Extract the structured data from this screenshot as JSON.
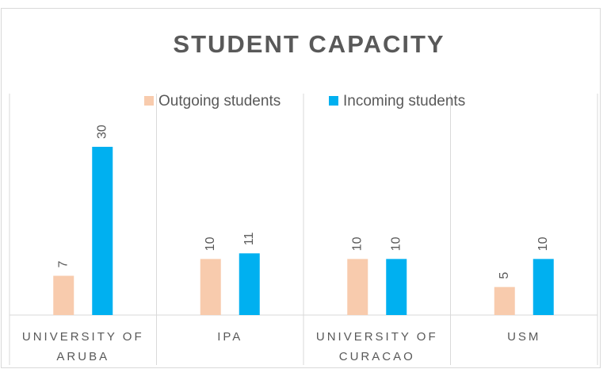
{
  "chart_data": {
    "type": "bar",
    "title": "STUDENT CAPACITY",
    "categories": [
      "UNIVERSITY OF ARUBA",
      "IPA",
      "UNIVERSITY OF CURACAO",
      "USM"
    ],
    "series": [
      {
        "name": "Outgoing students",
        "color": "#f8cbad",
        "values": [
          7,
          10,
          10,
          5
        ]
      },
      {
        "name": "Incoming students",
        "color": "#00b0f0",
        "values": [
          30,
          11,
          10,
          10
        ]
      }
    ]
  }
}
